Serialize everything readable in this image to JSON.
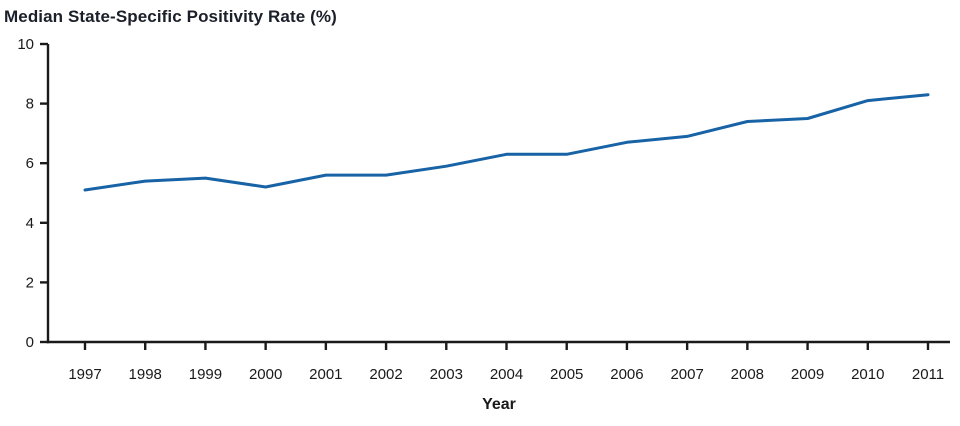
{
  "title": "Median State-Specific Positivity Rate (%)",
  "chart_data": {
    "type": "line",
    "x": [
      1997,
      1998,
      1999,
      2000,
      2001,
      2002,
      2003,
      2004,
      2005,
      2006,
      2007,
      2008,
      2009,
      2010,
      2011
    ],
    "series": [
      {
        "name": "Median state-specific positivity rate",
        "values": [
          5.1,
          5.4,
          5.5,
          5.2,
          5.6,
          5.6,
          5.9,
          6.3,
          6.3,
          6.7,
          6.9,
          7.4,
          7.5,
          8.1,
          8.3
        ]
      }
    ],
    "title": "Median State-Specific Positivity Rate (%)",
    "xlabel": "Year",
    "ylabel": "",
    "ylim": [
      0,
      10
    ],
    "yticks": [
      0,
      2,
      4,
      6,
      8,
      10
    ],
    "grid": false,
    "legend": "none",
    "line_color": "#1763a6",
    "axis_color": "#1a1a1a"
  }
}
